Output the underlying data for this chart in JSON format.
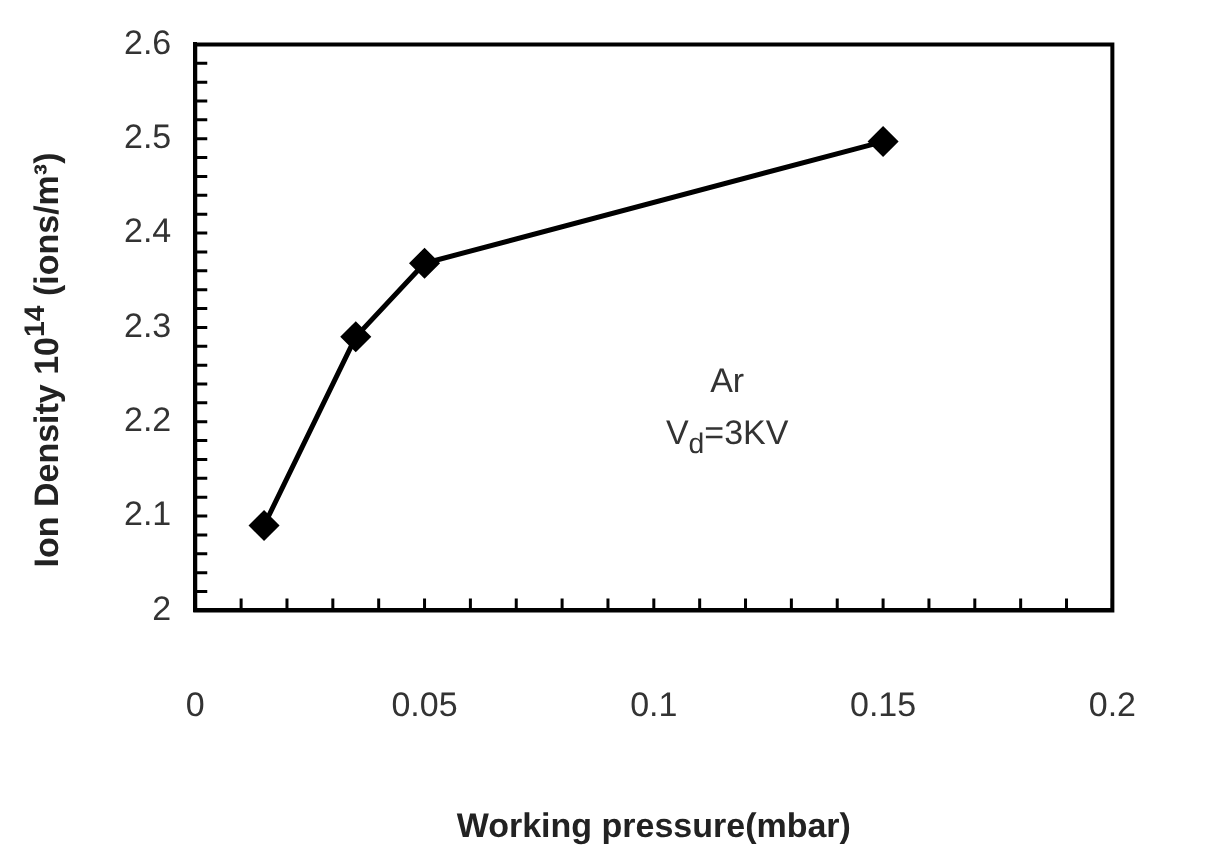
{
  "chart_data": {
    "type": "line",
    "xlabel": "Working pressure(mbar)",
    "ylabel": "Ion Density 10$^{14}$ (ions/m³)",
    "x": [
      0.015,
      0.035,
      0.05,
      0.15
    ],
    "series": [
      {
        "color": "#000000",
        "values": [
          2.09,
          2.29,
          2.368,
          2.497
        ]
      }
    ],
    "xlim": [
      0,
      0.2
    ],
    "xticks": [
      0,
      0.05,
      0.1,
      0.15,
      0.2
    ],
    "ylim": [
      2,
      2.6
    ],
    "yticks": [
      2,
      2.1,
      2.2,
      2.3,
      2.4,
      2.5,
      2.6
    ],
    "grid": false,
    "legend": false,
    "marker": "diamond",
    "line_style": "solid",
    "annotations": [
      "Ar",
      "V$_{d}$=3KV"
    ]
  }
}
